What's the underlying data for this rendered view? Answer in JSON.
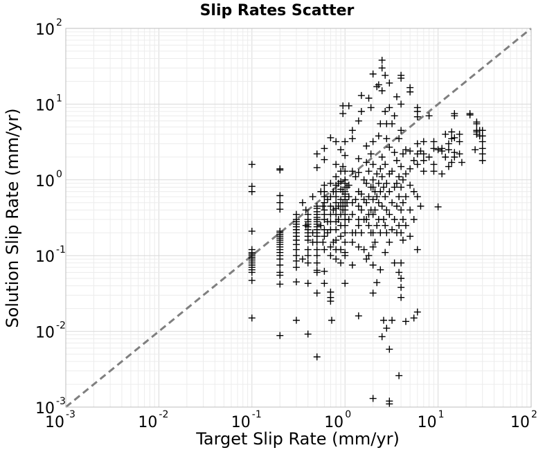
{
  "chart_data": {
    "type": "scatter",
    "title": "Slip Rates Scatter",
    "xlabel": "Target Slip Rate (mm/yr)",
    "ylabel": "Solution Slip Rate (mm/yr)",
    "xscale": "log",
    "yscale": "log",
    "xlim": [
      0.001,
      100
    ],
    "ylim": [
      0.001,
      100
    ],
    "grid": true,
    "marker": "plus",
    "marker_color": "#000000",
    "reference_line": {
      "type": "y=x",
      "style": "dashed",
      "color": "#7f7f7f"
    },
    "x_ticks": [
      {
        "base": "10",
        "exp": "-3",
        "value": 0.001
      },
      {
        "base": "10",
        "exp": "-2",
        "value": 0.01
      },
      {
        "base": "10",
        "exp": "-1",
        "value": 0.1
      },
      {
        "base": "10",
        "exp": "0",
        "value": 1
      },
      {
        "base": "10",
        "exp": "1",
        "value": 10
      },
      {
        "base": "10",
        "exp": "2",
        "value": 100
      }
    ],
    "y_ticks": [
      {
        "base": "10",
        "exp": "-3",
        "value": 0.001
      },
      {
        "base": "10",
        "exp": "-2",
        "value": 0.01
      },
      {
        "base": "10",
        "exp": "-1",
        "value": 0.1
      },
      {
        "base": "10",
        "exp": "0",
        "value": 1
      },
      {
        "base": "10",
        "exp": "1",
        "value": 10
      },
      {
        "base": "10",
        "exp": "2",
        "value": 100
      }
    ],
    "points": [
      [
        0.1,
        1.6
      ],
      [
        0.1,
        0.82
      ],
      [
        0.1,
        0.7
      ],
      [
        0.1,
        0.21
      ],
      [
        0.1,
        0.12
      ],
      [
        0.1,
        0.11
      ],
      [
        0.1,
        0.105
      ],
      [
        0.1,
        0.1
      ],
      [
        0.1,
        0.095
      ],
      [
        0.1,
        0.09
      ],
      [
        0.1,
        0.085
      ],
      [
        0.1,
        0.08
      ],
      [
        0.1,
        0.075
      ],
      [
        0.1,
        0.07
      ],
      [
        0.1,
        0.065
      ],
      [
        0.1,
        0.06
      ],
      [
        0.1,
        0.047
      ],
      [
        0.1,
        0.015
      ],
      [
        0.2,
        1.4
      ],
      [
        0.2,
        1.35
      ],
      [
        0.2,
        0.62
      ],
      [
        0.2,
        0.5
      ],
      [
        0.2,
        0.41
      ],
      [
        0.2,
        0.21
      ],
      [
        0.2,
        0.2
      ],
      [
        0.2,
        0.19
      ],
      [
        0.2,
        0.18
      ],
      [
        0.2,
        0.17
      ],
      [
        0.2,
        0.16
      ],
      [
        0.2,
        0.15
      ],
      [
        0.2,
        0.14
      ],
      [
        0.2,
        0.13
      ],
      [
        0.2,
        0.12
      ],
      [
        0.2,
        0.11
      ],
      [
        0.2,
        0.1
      ],
      [
        0.2,
        0.09
      ],
      [
        0.2,
        0.075
      ],
      [
        0.2,
        0.06
      ],
      [
        0.2,
        0.055
      ],
      [
        0.2,
        0.042
      ],
      [
        0.2,
        0.0088
      ],
      [
        0.3,
        0.35
      ],
      [
        0.3,
        0.3
      ],
      [
        0.3,
        0.28
      ],
      [
        0.3,
        0.26
      ],
      [
        0.3,
        0.24
      ],
      [
        0.3,
        0.22
      ],
      [
        0.3,
        0.2
      ],
      [
        0.3,
        0.18
      ],
      [
        0.3,
        0.16
      ],
      [
        0.3,
        0.14
      ],
      [
        0.3,
        0.12
      ],
      [
        0.3,
        0.1
      ],
      [
        0.3,
        0.085
      ],
      [
        0.3,
        0.07
      ],
      [
        0.3,
        0.045
      ],
      [
        0.3,
        0.014
      ],
      [
        0.35,
        0.5
      ],
      [
        0.35,
        0.09
      ],
      [
        0.38,
        0.4
      ],
      [
        0.38,
        0.25
      ],
      [
        0.4,
        0.35
      ],
      [
        0.4,
        0.3
      ],
      [
        0.4,
        0.28
      ],
      [
        0.4,
        0.26
      ],
      [
        0.4,
        0.24
      ],
      [
        0.4,
        0.22
      ],
      [
        0.4,
        0.2
      ],
      [
        0.4,
        0.18
      ],
      [
        0.4,
        0.16
      ],
      [
        0.4,
        0.12
      ],
      [
        0.4,
        0.1
      ],
      [
        0.4,
        0.08
      ],
      [
        0.4,
        0.043
      ],
      [
        0.4,
        0.0092
      ],
      [
        0.45,
        0.6
      ],
      [
        0.45,
        0.2
      ],
      [
        0.45,
        0.15
      ],
      [
        0.5,
        2.2
      ],
      [
        0.5,
        1.45
      ],
      [
        0.5,
        0.45
      ],
      [
        0.5,
        0.42
      ],
      [
        0.5,
        0.38
      ],
      [
        0.5,
        0.35
      ],
      [
        0.5,
        0.32
      ],
      [
        0.5,
        0.3
      ],
      [
        0.5,
        0.28
      ],
      [
        0.5,
        0.26
      ],
      [
        0.5,
        0.24
      ],
      [
        0.5,
        0.22
      ],
      [
        0.5,
        0.2
      ],
      [
        0.5,
        0.18
      ],
      [
        0.5,
        0.15
      ],
      [
        0.5,
        0.12
      ],
      [
        0.5,
        0.1
      ],
      [
        0.5,
        0.08
      ],
      [
        0.5,
        0.064
      ],
      [
        0.5,
        0.06
      ],
      [
        0.5,
        0.032
      ],
      [
        0.5,
        0.0046
      ],
      [
        0.55,
        0.7
      ],
      [
        0.55,
        0.25
      ],
      [
        0.58,
        0.45
      ],
      [
        0.58,
        0.15
      ],
      [
        0.6,
        2.6
      ],
      [
        0.6,
        1.85
      ],
      [
        0.6,
        0.85
      ],
      [
        0.6,
        0.7
      ],
      [
        0.6,
        0.6
      ],
      [
        0.6,
        0.5
      ],
      [
        0.6,
        0.4
      ],
      [
        0.6,
        0.35
      ],
      [
        0.6,
        0.3
      ],
      [
        0.6,
        0.22
      ],
      [
        0.6,
        0.18
      ],
      [
        0.6,
        0.12
      ],
      [
        0.6,
        0.062
      ],
      [
        0.6,
        0.043
      ],
      [
        0.65,
        0.55
      ],
      [
        0.65,
        0.28
      ],
      [
        0.65,
        0.2
      ],
      [
        0.7,
        3.6
      ],
      [
        0.7,
        0.9
      ],
      [
        0.7,
        0.6
      ],
      [
        0.7,
        0.45
      ],
      [
        0.7,
        0.35
      ],
      [
        0.7,
        0.28
      ],
      [
        0.7,
        0.22
      ],
      [
        0.7,
        0.13
      ],
      [
        0.7,
        0.1
      ],
      [
        0.7,
        0.033
      ],
      [
        0.7,
        0.028
      ],
      [
        0.7,
        0.025
      ],
      [
        0.75,
        0.7
      ],
      [
        0.75,
        0.4
      ],
      [
        0.75,
        0.15
      ],
      [
        0.72,
        0.014
      ],
      [
        0.8,
        3.2
      ],
      [
        0.8,
        1.6
      ],
      [
        0.8,
        1.1
      ],
      [
        0.8,
        0.85
      ],
      [
        0.8,
        0.7
      ],
      [
        0.8,
        0.6
      ],
      [
        0.8,
        0.5
      ],
      [
        0.8,
        0.42
      ],
      [
        0.8,
        0.35
      ],
      [
        0.8,
        0.28
      ],
      [
        0.8,
        0.22
      ],
      [
        0.8,
        0.16
      ],
      [
        0.8,
        0.12
      ],
      [
        0.8,
        0.09
      ],
      [
        0.85,
        0.9
      ],
      [
        0.85,
        0.45
      ],
      [
        0.85,
        0.3
      ],
      [
        0.9,
        2.5
      ],
      [
        0.9,
        1.3
      ],
      [
        0.9,
        0.95
      ],
      [
        0.9,
        0.75
      ],
      [
        0.9,
        0.55
      ],
      [
        0.9,
        0.45
      ],
      [
        0.9,
        0.35
      ],
      [
        0.9,
        0.25
      ],
      [
        0.9,
        0.18
      ],
      [
        0.9,
        0.12
      ],
      [
        0.9,
        0.08
      ],
      [
        0.95,
        9.5
      ],
      [
        0.95,
        7.5
      ],
      [
        0.95,
        1.5
      ],
      [
        0.95,
        0.7
      ],
      [
        0.95,
        0.5
      ],
      [
        0.95,
        0.4
      ],
      [
        1.0,
        3.2
      ],
      [
        1.0,
        2.1
      ],
      [
        1.0,
        1.3
      ],
      [
        1.0,
        1.0
      ],
      [
        1.0,
        0.9
      ],
      [
        1.0,
        0.8
      ],
      [
        1.0,
        0.7
      ],
      [
        1.0,
        0.65
      ],
      [
        1.0,
        0.6
      ],
      [
        1.0,
        0.55
      ],
      [
        1.0,
        0.5
      ],
      [
        1.0,
        0.45
      ],
      [
        1.0,
        0.4
      ],
      [
        1.0,
        0.35
      ],
      [
        1.0,
        0.3
      ],
      [
        1.0,
        0.25
      ],
      [
        1.0,
        0.2
      ],
      [
        1.0,
        0.15
      ],
      [
        1.0,
        0.11
      ],
      [
        1.0,
        0.1
      ],
      [
        1.0,
        0.043
      ],
      [
        1.05,
        0.8
      ],
      [
        1.05,
        0.5
      ],
      [
        1.1,
        9.5
      ],
      [
        1.1,
        0.85
      ],
      [
        1.1,
        0.6
      ],
      [
        1.1,
        0.3
      ],
      [
        1.2,
        4.5
      ],
      [
        1.2,
        3.5
      ],
      [
        1.2,
        1.3
      ],
      [
        1.2,
        0.5
      ],
      [
        1.2,
        0.35
      ],
      [
        1.2,
        0.2
      ],
      [
        1.2,
        0.15
      ],
      [
        1.2,
        0.075
      ],
      [
        1.3,
        1.1
      ],
      [
        1.3,
        0.55
      ],
      [
        1.3,
        0.2
      ],
      [
        1.4,
        6.0
      ],
      [
        1.4,
        1.9
      ],
      [
        1.4,
        1.25
      ],
      [
        1.4,
        0.7
      ],
      [
        1.4,
        0.45
      ],
      [
        1.4,
        0.3
      ],
      [
        1.4,
        0.25
      ],
      [
        1.4,
        0.13
      ],
      [
        1.4,
        0.016
      ],
      [
        1.5,
        13.0
      ],
      [
        1.5,
        8.0
      ],
      [
        1.5,
        0.65
      ],
      [
        1.5,
        0.4
      ],
      [
        1.5,
        0.2
      ],
      [
        1.6,
        1.0
      ],
      [
        1.6,
        0.55
      ],
      [
        1.6,
        0.3
      ],
      [
        1.6,
        0.12
      ],
      [
        1.7,
        2.8
      ],
      [
        1.7,
        1.7
      ],
      [
        1.7,
        0.9
      ],
      [
        1.7,
        0.5
      ],
      [
        1.7,
        0.3
      ],
      [
        1.7,
        0.09
      ],
      [
        1.8,
        12.0
      ],
      [
        1.8,
        1.3
      ],
      [
        1.8,
        0.6
      ],
      [
        1.8,
        0.35
      ],
      [
        1.8,
        0.25
      ],
      [
        1.8,
        0.1
      ],
      [
        1.9,
        9.0
      ],
      [
        1.9,
        2.2
      ],
      [
        1.9,
        0.8
      ],
      [
        1.9,
        0.4
      ],
      [
        1.9,
        0.2
      ],
      [
        2.0,
        25.0
      ],
      [
        2.0,
        3.2
      ],
      [
        2.0,
        1.6
      ],
      [
        2.0,
        1.0
      ],
      [
        2.0,
        0.8
      ],
      [
        2.0,
        0.55
      ],
      [
        2.0,
        0.35
      ],
      [
        2.0,
        0.2
      ],
      [
        2.0,
        0.13
      ],
      [
        2.0,
        0.075
      ],
      [
        2.0,
        0.032
      ],
      [
        2.0,
        0.0013
      ],
      [
        2.1,
        0.7
      ],
      [
        2.1,
        0.4
      ],
      [
        2.1,
        0.15
      ],
      [
        2.2,
        17.0
      ],
      [
        2.2,
        1.2
      ],
      [
        2.2,
        0.6
      ],
      [
        2.2,
        0.25
      ],
      [
        2.2,
        0.044
      ],
      [
        2.3,
        18.0
      ],
      [
        2.3,
        3.8
      ],
      [
        2.3,
        0.9
      ],
      [
        2.3,
        0.5
      ],
      [
        2.3,
        0.3
      ],
      [
        2.4,
        5.5
      ],
      [
        2.4,
        1.4
      ],
      [
        2.4,
        0.7
      ],
      [
        2.4,
        0.2
      ],
      [
        2.4,
        0.065
      ],
      [
        2.5,
        38.0
      ],
      [
        2.5,
        30.0
      ],
      [
        2.5,
        15.0
      ],
      [
        2.5,
        2.0
      ],
      [
        2.5,
        1.1
      ],
      [
        2.5,
        0.45
      ],
      [
        2.5,
        0.0085
      ],
      [
        2.6,
        0.8
      ],
      [
        2.6,
        0.3
      ],
      [
        2.6,
        0.014
      ],
      [
        2.7,
        24.0
      ],
      [
        2.7,
        8.0
      ],
      [
        2.7,
        1.6
      ],
      [
        2.7,
        0.6
      ],
      [
        2.7,
        0.25
      ],
      [
        2.7,
        0.11
      ],
      [
        2.8,
        5.5
      ],
      [
        2.8,
        3.5
      ],
      [
        2.8,
        0.9
      ],
      [
        2.8,
        0.4
      ],
      [
        2.8,
        0.2
      ],
      [
        2.8,
        0.011
      ],
      [
        3.0,
        19.0
      ],
      [
        3.0,
        9.0
      ],
      [
        3.0,
        2.7
      ],
      [
        3.0,
        1.2
      ],
      [
        3.0,
        0.7
      ],
      [
        3.0,
        0.35
      ],
      [
        3.0,
        0.15
      ],
      [
        3.0,
        0.0058
      ],
      [
        3.0,
        0.0012
      ],
      [
        3.0,
        0.0011
      ],
      [
        3.2,
        5.5
      ],
      [
        3.2,
        1.3
      ],
      [
        3.2,
        0.5
      ],
      [
        3.2,
        0.22
      ],
      [
        3.2,
        0.014
      ],
      [
        3.4,
        7.0
      ],
      [
        3.4,
        2.3
      ],
      [
        3.4,
        0.8
      ],
      [
        3.4,
        0.3
      ],
      [
        3.4,
        0.08
      ],
      [
        3.6,
        12.5
      ],
      [
        3.6,
        1.8
      ],
      [
        3.6,
        0.9
      ],
      [
        3.6,
        0.45
      ],
      [
        3.6,
        0.2
      ],
      [
        3.8,
        3.5
      ],
      [
        3.8,
        1.1
      ],
      [
        3.8,
        0.6
      ],
      [
        3.8,
        0.25
      ],
      [
        3.8,
        0.06
      ],
      [
        3.8,
        0.0026
      ],
      [
        4.0,
        24.0
      ],
      [
        4.0,
        22.0
      ],
      [
        4.0,
        10.0
      ],
      [
        4.0,
        4.5
      ],
      [
        4.0,
        1.5
      ],
      [
        4.0,
        0.8
      ],
      [
        4.0,
        0.4
      ],
      [
        4.0,
        0.2
      ],
      [
        4.0,
        0.08
      ],
      [
        4.0,
        0.05
      ],
      [
        4.0,
        0.038
      ],
      [
        4.0,
        0.028
      ],
      [
        4.2,
        2.2
      ],
      [
        4.2,
        1.0
      ],
      [
        4.2,
        0.5
      ],
      [
        4.2,
        0.3
      ],
      [
        4.2,
        0.16
      ],
      [
        4.5,
        2.5
      ],
      [
        4.5,
        1.2
      ],
      [
        4.5,
        0.6
      ],
      [
        4.5,
        0.25
      ],
      [
        4.5,
        0.0135
      ],
      [
        5.0,
        16.5
      ],
      [
        5.0,
        14.5
      ],
      [
        5.0,
        2.4
      ],
      [
        5.0,
        1.4
      ],
      [
        5.0,
        0.85
      ],
      [
        5.0,
        0.4
      ],
      [
        5.0,
        0.18
      ],
      [
        5.5,
        1.8
      ],
      [
        5.5,
        0.7
      ],
      [
        5.5,
        0.3
      ],
      [
        5.5,
        0.015
      ],
      [
        6.0,
        9.0
      ],
      [
        6.0,
        8.0
      ],
      [
        6.0,
        6.8
      ],
      [
        6.0,
        3.0
      ],
      [
        6.0,
        2.2
      ],
      [
        6.0,
        1.6
      ],
      [
        6.0,
        0.6
      ],
      [
        6.0,
        0.12
      ],
      [
        6.0,
        0.018
      ],
      [
        6.5,
        2.4
      ],
      [
        6.5,
        0.45
      ],
      [
        7.0,
        3.2
      ],
      [
        7.0,
        2.2
      ],
      [
        7.0,
        1.8
      ],
      [
        7.0,
        1.3
      ],
      [
        8.0,
        7.0
      ],
      [
        8.0,
        2.0
      ],
      [
        9.0,
        3.2
      ],
      [
        9.0,
        2.6
      ],
      [
        9.0,
        1.6
      ],
      [
        9.0,
        1.3
      ],
      [
        10.0,
        2.5
      ],
      [
        10.0,
        0.44
      ],
      [
        11.0,
        2.6
      ],
      [
        11.0,
        2.4
      ],
      [
        11.0,
        1.2
      ],
      [
        12.0,
        4.0
      ],
      [
        12.0,
        2.0
      ],
      [
        13.0,
        3.0
      ],
      [
        13.0,
        2.5
      ],
      [
        13.0,
        1.5
      ],
      [
        14.0,
        4.3
      ],
      [
        14.0,
        3.5
      ],
      [
        14.0,
        1.7
      ],
      [
        15.0,
        7.5
      ],
      [
        15.0,
        7.0
      ],
      [
        15.0,
        3.6
      ],
      [
        15.0,
        2.3
      ],
      [
        15.0,
        2.0
      ],
      [
        17.0,
        4.0
      ],
      [
        17.0,
        3.2
      ],
      [
        17.0,
        2.2
      ],
      [
        18.0,
        1.7
      ],
      [
        22.0,
        7.5
      ],
      [
        22.0,
        7.2
      ],
      [
        25.0,
        2.5
      ],
      [
        26.0,
        5.8
      ],
      [
        26.0,
        5.5
      ],
      [
        26.0,
        4.5
      ],
      [
        26.0,
        4.3
      ],
      [
        26.0,
        4.0
      ],
      [
        28.0,
        4.5
      ],
      [
        28.0,
        3.8
      ],
      [
        30.0,
        4.5
      ],
      [
        30.0,
        3.8
      ],
      [
        30.0,
        3.2
      ],
      [
        30.0,
        2.6
      ],
      [
        30.0,
        2.2
      ],
      [
        30.0,
        1.8
      ]
    ]
  }
}
